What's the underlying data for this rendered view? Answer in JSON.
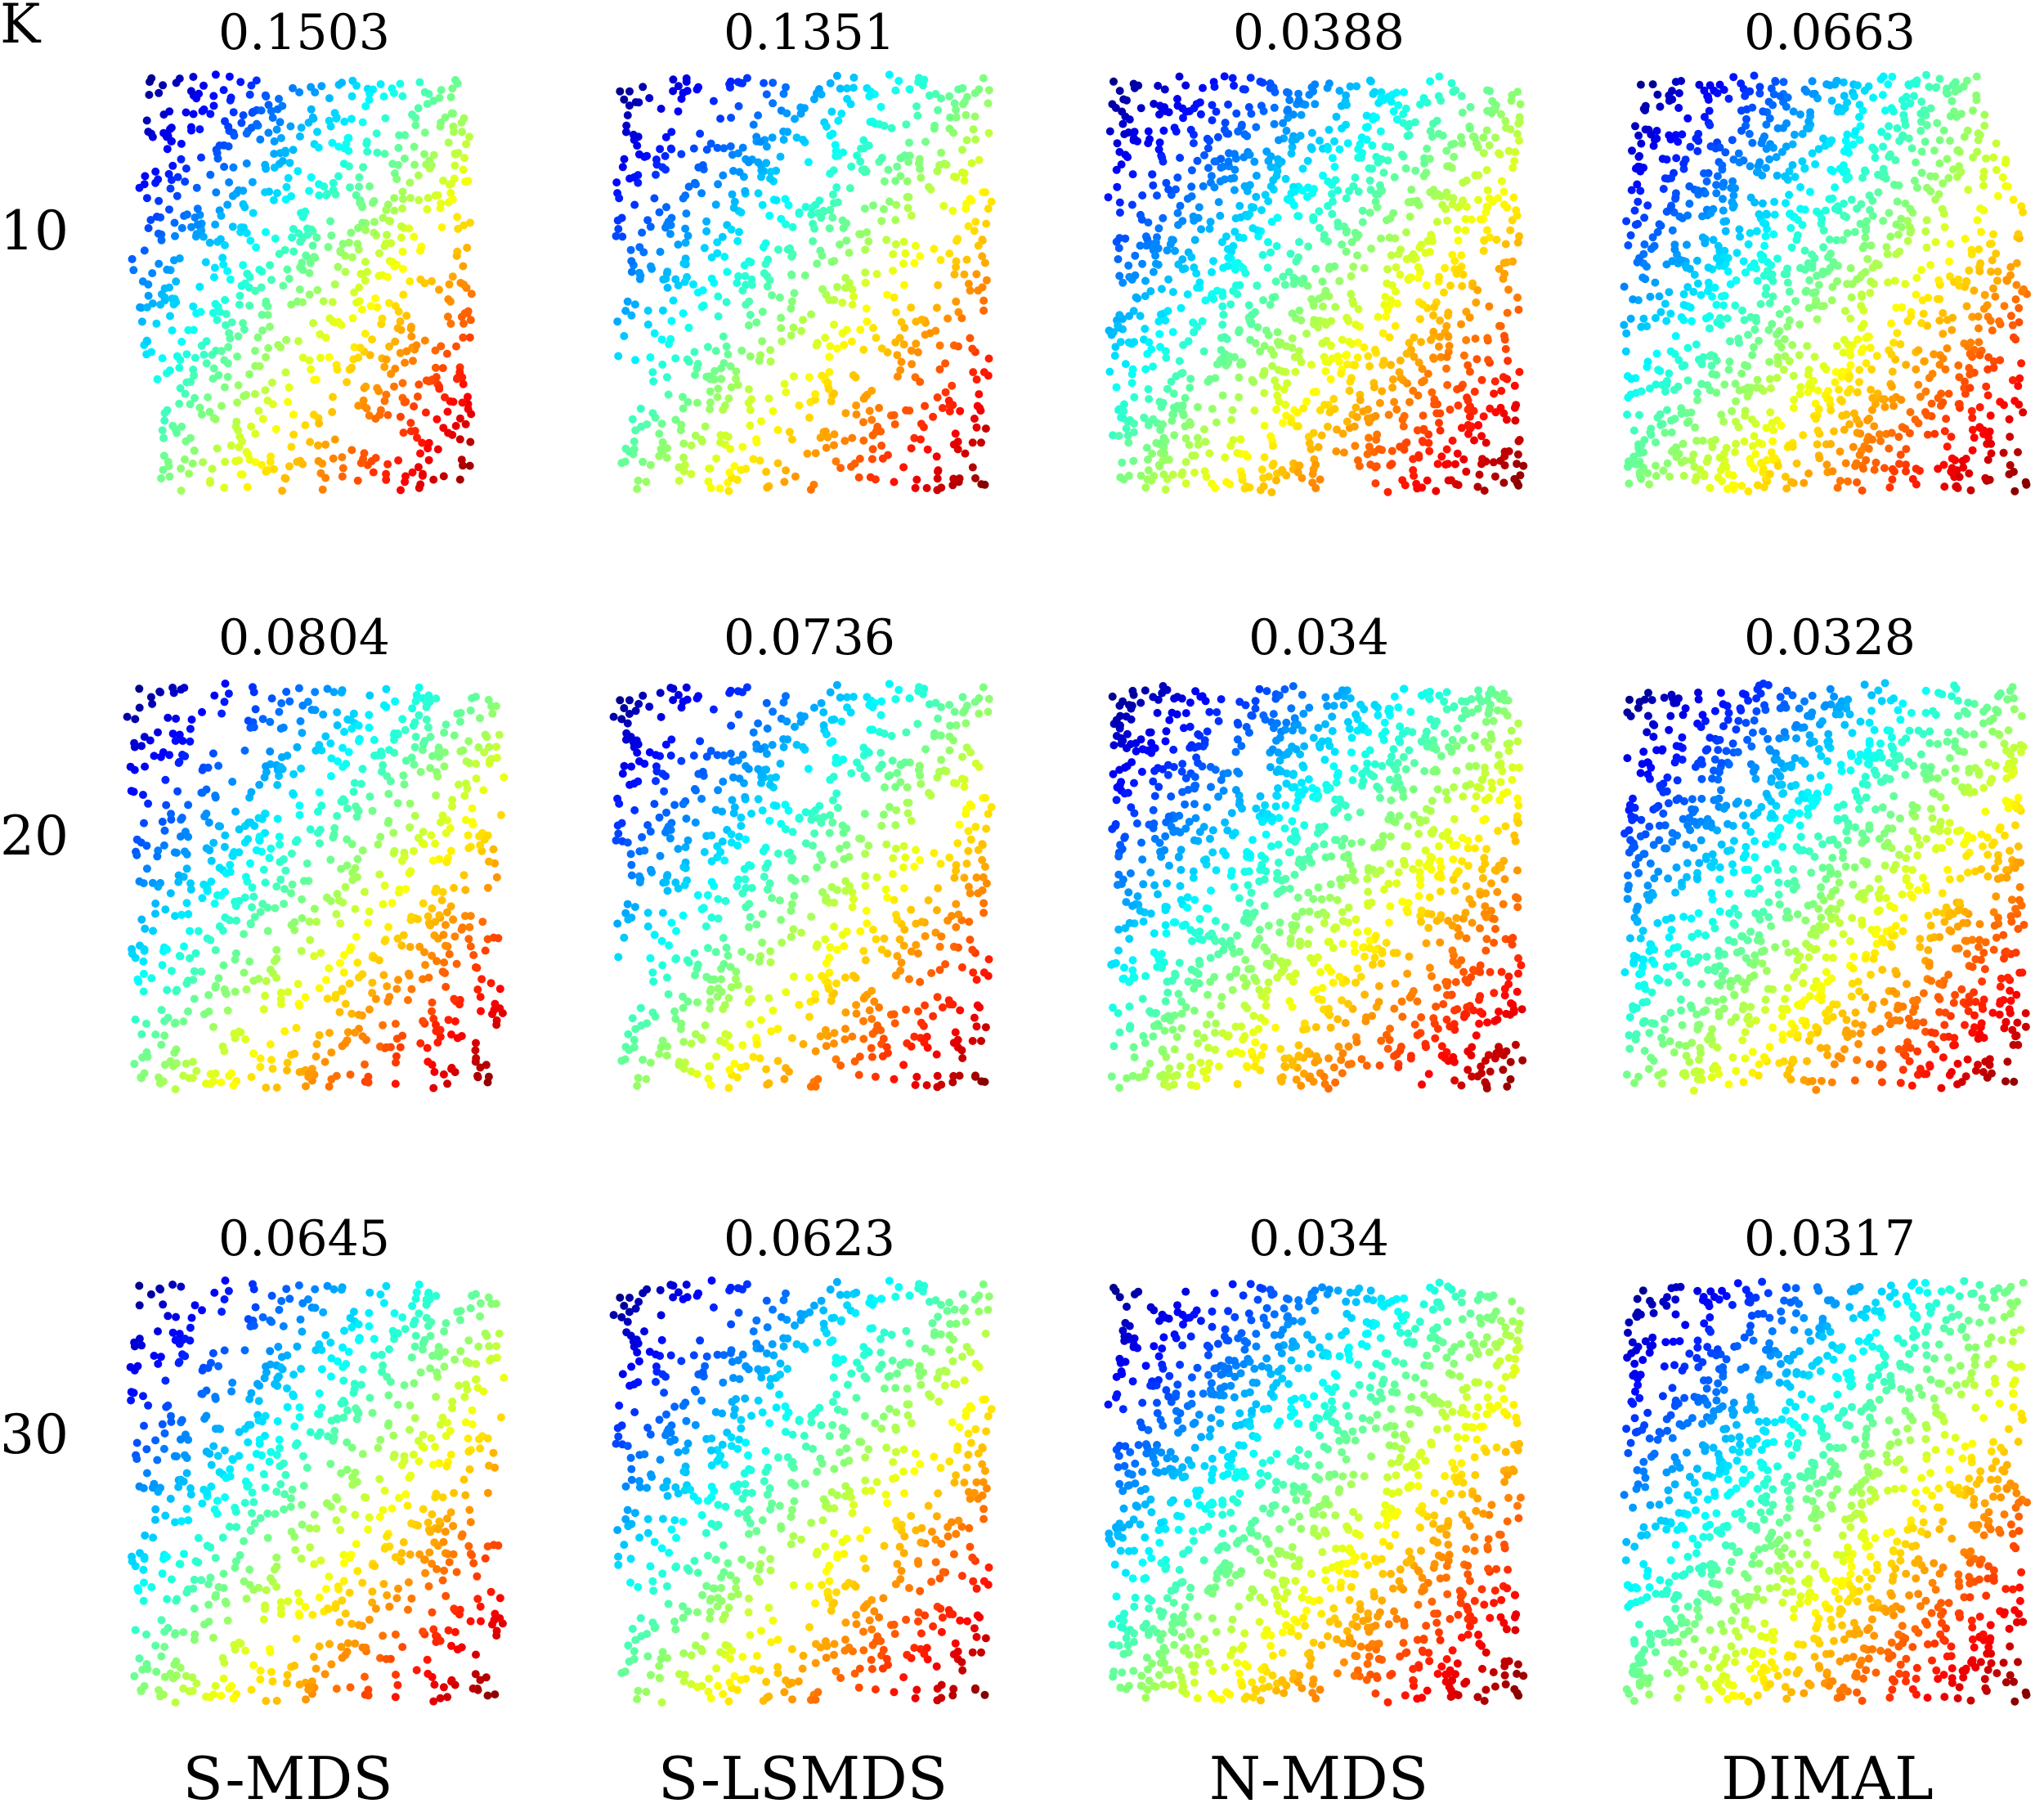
{
  "figure": {
    "row_axis_label": "K",
    "rows": [
      "10",
      "20",
      "30"
    ],
    "columns": [
      "S-MDS",
      "S-LSMDS",
      "N-MDS",
      "DIMAL"
    ],
    "colormap": "jet",
    "colormap_stops": [
      "#00007f",
      "#0000ff",
      "#007fff",
      "#00ffff",
      "#7fff7f",
      "#ffff00",
      "#ff7f00",
      "#ff0000",
      "#7f0000"
    ]
  },
  "chart_data": {
    "type": "scatter",
    "description_of_layout": "grid of 2D embeddings; rows = K, columns = method",
    "row_variable": "K",
    "row_values": [
      10,
      20,
      30
    ],
    "methods": [
      "S-MDS",
      "S-LSMDS",
      "N-MDS",
      "DIMAL"
    ],
    "scores": [
      [
        "0.1503",
        "0.1351",
        "0.0388",
        "0.0663"
      ],
      [
        "0.0804",
        "0.0736",
        "0.034",
        "0.0328"
      ],
      [
        "0.0645",
        "0.0623",
        "0.034",
        "0.0317"
      ]
    ],
    "axes_visible": false,
    "grid": false,
    "legend": "none"
  }
}
